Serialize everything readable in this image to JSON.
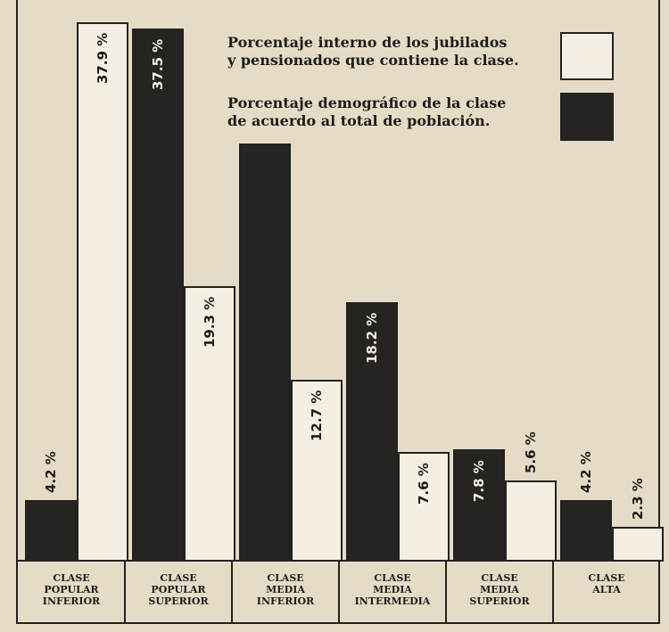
{
  "chart_data": {
    "type": "bar",
    "categories": [
      "CLASE\nPOPULAR\nINFERIOR",
      "CLASE\nPOPULAR\nSUPERIOR",
      "CLASE\nMEDIA\nINFERIOR",
      "CLASE\nMEDIA\nINTERMEDIA",
      "CLASE\nMEDIA\nSUPERIOR",
      "CLASE\nALTA"
    ],
    "series": [
      {
        "name": "Porcentaje interno de los jubilados\ny pensionados que contiene la clase.",
        "color": "#f4efe2",
        "values": [
          37.9,
          19.3,
          12.7,
          7.6,
          5.6,
          2.3
        ],
        "value_labels": [
          "37.9 %",
          "19.3 %",
          "12.7 %",
          "7.6 %",
          "5.6 %",
          "2.3 %"
        ]
      },
      {
        "name": "Porcentaje demográfico de la clase\nde acuerdo al total de población.",
        "color": "#262421",
        "values": [
          4.2,
          37.5,
          29.4,
          18.2,
          7.8,
          4.2
        ],
        "value_labels": [
          "4.2 %",
          "37.5 %",
          null,
          "18.2 %",
          "7.8 %",
          "4.2 %"
        ]
      }
    ]
  }
}
